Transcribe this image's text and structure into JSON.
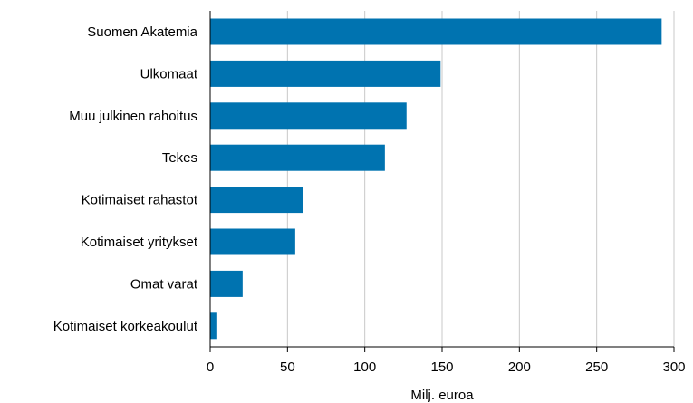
{
  "chart_data": {
    "type": "bar",
    "orientation": "horizontal",
    "categories": [
      "Suomen Akatemia",
      "Ulkomaat",
      "Muu julkinen rahoitus",
      "Tekes",
      "Kotimaiset rahastot",
      "Kotimaiset yritykset",
      "Omat varat",
      "Kotimaiset korkeakoulut"
    ],
    "values": [
      292,
      149,
      127,
      113,
      60,
      55,
      21,
      4
    ],
    "xlabel": "Milj. euroa",
    "ylabel": "",
    "xlim": [
      0,
      300
    ],
    "xticks": [
      0,
      50,
      100,
      150,
      200,
      250,
      300
    ],
    "grid": "vertical",
    "legend": "none",
    "colors": {
      "bar": "#0073b0",
      "grid": "#c8c8c8",
      "axis": "#000000"
    }
  }
}
